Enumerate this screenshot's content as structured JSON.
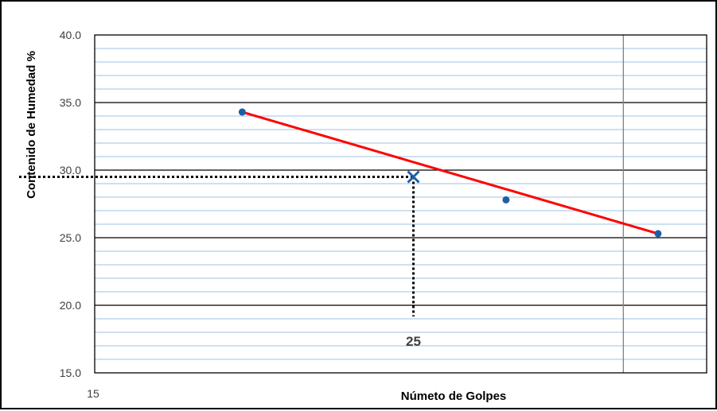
{
  "chart_data": {
    "type": "scatter",
    "title": "",
    "xlabel": "Númeto de Golpes",
    "ylabel": "Contenido de Humedad %",
    "xscale": "log",
    "xlim": [
      15,
      40
    ],
    "ylim": [
      15,
      40
    ],
    "x_tick_labels": [
      "15"
    ],
    "y_tick_labels": [
      "40.0",
      "35.0",
      "30.0",
      "25.0",
      "20.0",
      "15.0"
    ],
    "y_major_step": 5,
    "y_minor_step": 1,
    "x_gridline_at": 35,
    "grid": true,
    "series": [
      {
        "marker_color": "#1f5fa8",
        "line_color": "#ff0000",
        "points": [
          {
            "x": 19,
            "y": 34.3
          },
          {
            "x": 29,
            "y": 27.8
          },
          {
            "x": 37,
            "y": 25.3
          }
        ]
      }
    ],
    "annotation": {
      "label": "25",
      "x": 25,
      "y": 29.5,
      "marker": "x",
      "marker_color": "#1f5fa8"
    }
  }
}
